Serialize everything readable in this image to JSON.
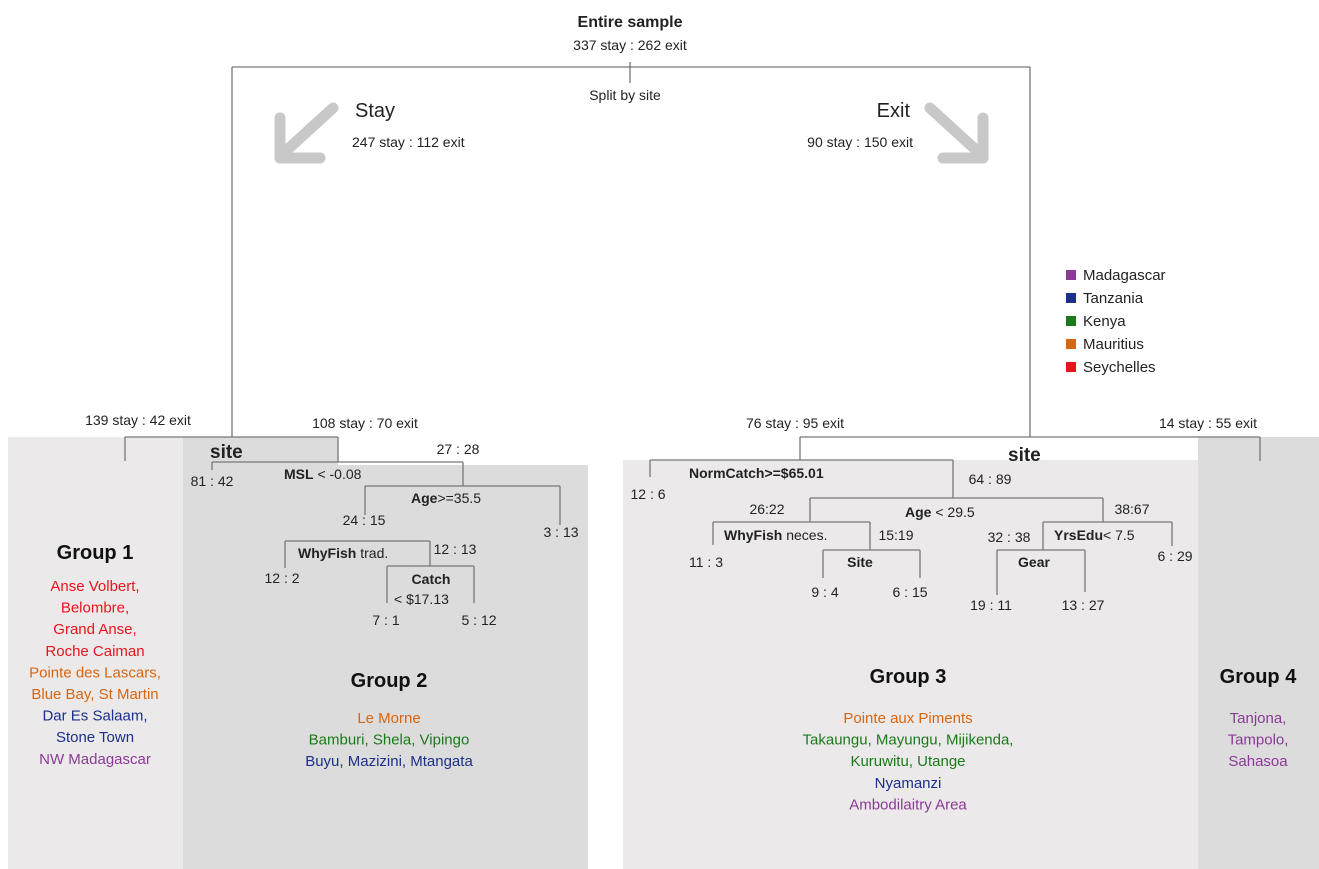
{
  "colors": {
    "Madagascar": "#8b3a96",
    "Tanzania": "#1c2f8c",
    "Kenya": "#1a7a1a",
    "Mauritius": "#d8660f",
    "Seychelles": "#e8141c",
    "panel_light": "#ebe9ea",
    "panel_dark": "#dcdcdc",
    "line": "#777777",
    "arrow": "#c8c8c8"
  },
  "root": {
    "title": "Entire sample",
    "counts": "337 stay : 262 exit",
    "split_label": "Split by site"
  },
  "branches": {
    "stay": {
      "label": "Stay",
      "counts": "247 stay : 112 exit"
    },
    "exit": {
      "label": "Exit",
      "counts": "90 stay : 150 exit"
    }
  },
  "legend": [
    {
      "name": "Madagascar",
      "color": "#8b3a96"
    },
    {
      "name": "Tanzania",
      "color": "#1c2f8c"
    },
    {
      "name": "Kenya",
      "color": "#1a7a1a"
    },
    {
      "name": "Mauritius",
      "color": "#d8660f"
    },
    {
      "name": "Seychelles",
      "color": "#e8141c"
    }
  ],
  "left_tree": {
    "g1_counts": "139 stay : 42 exit",
    "g2_counts": "108 stay : 70 exit",
    "site_label": "site",
    "n_81_42": "81 : 42",
    "n_27_28": "27 : 28",
    "msl_var": "MSL",
    "msl_rule": " < -0.08",
    "age_var": "Age",
    "age_rule": ">=35.5",
    "n_24_15": "24 : 15",
    "n_3_13": "3 : 13",
    "whyfish_var": "WhyFish",
    "whyfish_rule": " trad.",
    "n_12_13": "12 : 13",
    "n_12_2": "12 : 2",
    "catch_var": "Catch",
    "catch_rule": "< $17.13",
    "n_7_1": "7 : 1",
    "n_5_12": "5 : 12"
  },
  "right_tree": {
    "g3_counts": "76 stay : 95 exit",
    "g4_counts": "14 stay : 55 exit",
    "site_label": "site",
    "normcatch_label": "NormCatch>=$65.01",
    "n_12_6": "12 : 6",
    "n_64_89": "64 : 89",
    "n_26_22": "26:22",
    "age_var": "Age",
    "age_rule": " < 29.5",
    "n_38_67": "38:67",
    "whyfish_var": "WhyFish",
    "whyfish_rule": " neces.",
    "n_15_19": "15:19",
    "n_32_38": "32 : 38",
    "yrsedu_var": "YrsEdu",
    "yrsedu_rule": "< 7.5",
    "n_11_3": "11 : 3",
    "site_node": "Site",
    "gear_node": "Gear",
    "n_6_29": "6 : 29",
    "n_9_4": "9 : 4",
    "n_6_15": "6 : 15",
    "n_19_11": "19 : 11",
    "n_13_27": "13 : 27"
  },
  "groups": {
    "g1": {
      "title": "Group 1",
      "sites": [
        {
          "text": "Anse Volbert,",
          "country": "Seychelles"
        },
        {
          "text": "Belombre,",
          "country": "Seychelles"
        },
        {
          "text": "Grand Anse,",
          "country": "Seychelles"
        },
        {
          "text": "Roche Caiman",
          "country": "Seychelles"
        },
        {
          "text": "Pointe des Lascars,",
          "country": "Mauritius"
        },
        {
          "text": "Blue Bay, St Martin",
          "country": "Mauritius"
        },
        {
          "text": "Dar Es Salaam,",
          "country": "Tanzania"
        },
        {
          "text": "Stone Town",
          "country": "Tanzania"
        },
        {
          "text": "NW Madagascar",
          "country": "Madagascar"
        }
      ]
    },
    "g2": {
      "title": "Group 2",
      "sites": [
        {
          "text": "Le Morne",
          "country": "Mauritius"
        },
        {
          "text": "Bamburi, Shela, Vipingo",
          "country": "Kenya"
        },
        {
          "text": "Buyu, Mazizini, Mtangata",
          "country": "Tanzania"
        }
      ]
    },
    "g3": {
      "title": "Group 3",
      "sites": [
        {
          "text": "Pointe aux Piments",
          "country": "Mauritius"
        },
        {
          "text": "Takaungu, Mayungu, Mijikenda,",
          "country": "Kenya"
        },
        {
          "text": "Kuruwitu, Utange",
          "country": "Kenya"
        },
        {
          "text": "Nyamanzi",
          "country": "Tanzania"
        },
        {
          "text": "Ambodilaitry Area",
          "country": "Madagascar"
        }
      ]
    },
    "g4": {
      "title": "Group 4",
      "sites": [
        {
          "text": "Tanjona,",
          "country": "Madagascar"
        },
        {
          "text": "Tampolo,",
          "country": "Madagascar"
        },
        {
          "text": "Sahasoa",
          "country": "Madagascar"
        }
      ]
    }
  }
}
